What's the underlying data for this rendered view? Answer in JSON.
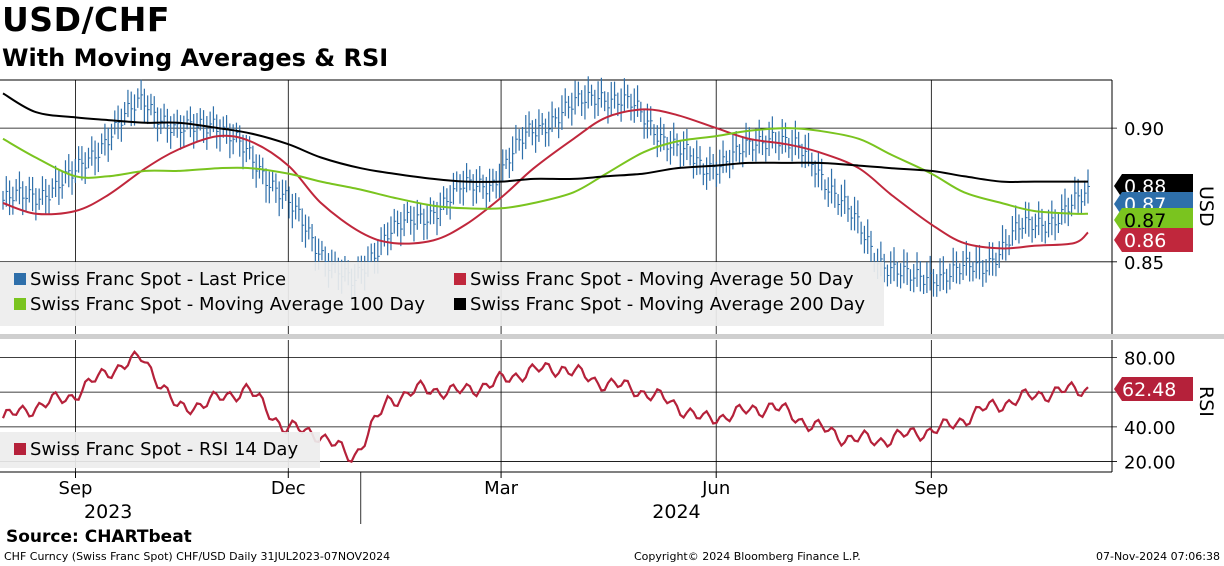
{
  "header": {
    "title": "USD/CHF",
    "subtitle": "With Moving Averages & RSI"
  },
  "footer": {
    "source": "Source: CHARTbeat",
    "ticker_info": "CHF Curncy (Swiss Franc Spot) CHF/USD  Daily 31JUL2023-07NOV2024",
    "copyright": "Copyright© 2024 Bloomberg Finance L.P.",
    "timestamp": "07-Nov-2024 07:06:38"
  },
  "colors": {
    "last_price": "#2e6faa",
    "ma50": "#c0273c",
    "ma100": "#7ac41f",
    "ma200": "#000000",
    "rsi": "#b5213a"
  },
  "chart_data": [
    {
      "type": "line",
      "panel": "price",
      "ylabel": "USD",
      "ylim": [
        0.823,
        0.918
      ],
      "yticks": [
        {
          "value": 0.9,
          "label": "0.90"
        },
        {
          "value": 0.85,
          "label": "0.85"
        }
      ],
      "x": [
        "2023-08-01",
        "2023-08-15",
        "2023-09-01",
        "2023-09-15",
        "2023-10-01",
        "2023-10-15",
        "2023-11-01",
        "2023-11-15",
        "2023-12-01",
        "2023-12-15",
        "2024-01-01",
        "2024-01-15",
        "2024-02-01",
        "2024-02-15",
        "2024-03-01",
        "2024-03-15",
        "2024-04-01",
        "2024-04-15",
        "2024-05-01",
        "2024-05-15",
        "2024-06-01",
        "2024-06-15",
        "2024-07-01",
        "2024-07-15",
        "2024-08-01",
        "2024-08-15",
        "2024-09-01",
        "2024-09-15",
        "2024-10-01",
        "2024-10-15",
        "2024-11-01",
        "2024-11-07"
      ],
      "series": [
        {
          "name": "Swiss Franc Spot - Last Price",
          "color_key": "last_price",
          "style": "ohlc",
          "values": [
            0.873,
            0.875,
            0.882,
            0.897,
            0.911,
            0.898,
            0.903,
            0.89,
            0.875,
            0.855,
            0.841,
            0.862,
            0.866,
            0.877,
            0.88,
            0.898,
            0.906,
            0.913,
            0.908,
            0.895,
            0.885,
            0.89,
            0.898,
            0.889,
            0.872,
            0.851,
            0.843,
            0.846,
            0.848,
            0.862,
            0.866,
            0.875
          ]
        },
        {
          "name": "Swiss Franc Spot - Moving Average 50 Day",
          "color_key": "ma50",
          "style": "line",
          "values": [
            0.872,
            0.868,
            0.869,
            0.875,
            0.885,
            0.892,
            0.897,
            0.895,
            0.886,
            0.872,
            0.861,
            0.857,
            0.858,
            0.864,
            0.874,
            0.885,
            0.896,
            0.904,
            0.907,
            0.905,
            0.9,
            0.896,
            0.894,
            0.891,
            0.885,
            0.875,
            0.864,
            0.857,
            0.855,
            0.856,
            0.857,
            0.861
          ]
        },
        {
          "name": "Swiss Franc Spot - Moving Average 100 Day",
          "color_key": "ma100",
          "style": "line",
          "values": [
            0.896,
            0.889,
            0.882,
            0.882,
            0.884,
            0.884,
            0.885,
            0.885,
            0.883,
            0.88,
            0.877,
            0.874,
            0.871,
            0.87,
            0.87,
            0.872,
            0.876,
            0.883,
            0.891,
            0.895,
            0.897,
            0.899,
            0.9,
            0.899,
            0.896,
            0.89,
            0.883,
            0.876,
            0.872,
            0.869,
            0.868,
            0.868
          ]
        },
        {
          "name": "Swiss Franc Spot - Moving Average 200 Day",
          "color_key": "ma200",
          "style": "line",
          "values": [
            0.913,
            0.906,
            0.904,
            0.903,
            0.902,
            0.902,
            0.9,
            0.898,
            0.894,
            0.889,
            0.885,
            0.883,
            0.881,
            0.88,
            0.88,
            0.881,
            0.881,
            0.882,
            0.883,
            0.885,
            0.886,
            0.887,
            0.887,
            0.887,
            0.886,
            0.885,
            0.884,
            0.882,
            0.88,
            0.88,
            0.88,
            0.88
          ]
        }
      ],
      "last_value_labels": [
        {
          "label": "0.88",
          "color_key": "ma200",
          "text_color": "#ffffff"
        },
        {
          "label": "0.87",
          "color_key": "last_price",
          "text_color": "#ffffff"
        },
        {
          "label": "0.87",
          "color_key": "ma100",
          "text_color": "#000000"
        },
        {
          "label": "0.86",
          "color_key": "ma50",
          "text_color": "#ffffff"
        }
      ],
      "legend": {
        "placement": "bottom-left",
        "items": [
          {
            "label": "Swiss Franc Spot - Last Price",
            "color_key": "last_price"
          },
          {
            "label": "Swiss Franc Spot - Moving Average 50 Day",
            "color_key": "ma50"
          },
          {
            "label": "Swiss Franc Spot - Moving Average 100 Day",
            "color_key": "ma100"
          },
          {
            "label": "Swiss Franc Spot - Moving Average 200 Day",
            "color_key": "ma200"
          }
        ]
      },
      "grid": true
    },
    {
      "type": "line",
      "panel": "rsi",
      "ylabel": "RSI",
      "ylim": [
        14,
        90
      ],
      "yticks": [
        {
          "value": 80,
          "label": "80.00"
        },
        {
          "value": 60,
          "label": "60.00"
        },
        {
          "value": 40,
          "label": "40.00"
        },
        {
          "value": 20,
          "label": "20.00"
        }
      ],
      "series": [
        {
          "name": "Swiss Franc Spot - RSI 14 Day",
          "color_key": "rsi",
          "values": [
            45,
            52,
            58,
            72,
            80,
            50,
            55,
            62,
            40,
            36,
            22,
            55,
            62,
            60,
            65,
            72,
            74,
            66,
            62,
            55,
            44,
            48,
            52,
            42,
            34,
            32,
            36,
            40,
            50,
            56,
            60,
            62
          ]
        }
      ],
      "last_value_label": {
        "label": "62.48",
        "color_key": "rsi"
      },
      "legend": {
        "placement": "bottom-left",
        "items": [
          {
            "label": "Swiss Franc Spot - RSI 14 Day",
            "color_key": "rsi"
          }
        ]
      },
      "grid": true
    }
  ],
  "x_axis": {
    "months": [
      {
        "date": "2023-09-01",
        "label": "Sep"
      },
      {
        "date": "2023-12-01",
        "label": "Dec"
      },
      {
        "date": "2024-03-01",
        "label": "Mar"
      },
      {
        "date": "2024-06-01",
        "label": "Jun"
      },
      {
        "date": "2024-09-01",
        "label": "Sep"
      }
    ],
    "years": [
      {
        "date": "2023-09-15",
        "label": "2023"
      },
      {
        "date": "2024-05-15",
        "label": "2024"
      }
    ],
    "year_divider": "2024-01-01"
  }
}
